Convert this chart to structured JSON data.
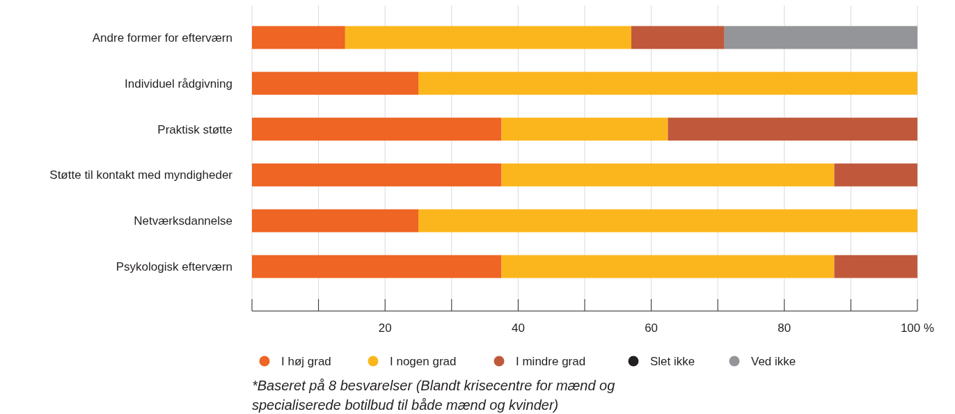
{
  "chart_data": {
    "type": "bar",
    "orientation": "horizontal",
    "stacked": true,
    "categories": [
      "Andre former for efterværn",
      "Individuel rådgivning",
      "Praktisk støtte",
      "Støtte til kontakt med myndigheder",
      "Netværksdannelse",
      "Psykologisk efterværn"
    ],
    "series": [
      {
        "name": "I høj grad",
        "color": "#ee6524",
        "values": [
          14,
          25,
          37.5,
          37.5,
          25,
          37.5
        ]
      },
      {
        "name": "I nogen grad",
        "color": "#fbb61d",
        "values": [
          43,
          75,
          25,
          50,
          75,
          50
        ]
      },
      {
        "name": "I mindre grad",
        "color": "#c0593b",
        "values": [
          14,
          0,
          37.5,
          12.5,
          0,
          12.5
        ]
      },
      {
        "name": "Slet ikke",
        "color": "#231f20",
        "values": [
          0,
          0,
          0,
          0,
          0,
          0
        ]
      },
      {
        "name": "Ved ikke",
        "color": "#939598",
        "values": [
          29,
          0,
          0,
          0,
          0,
          0
        ]
      }
    ],
    "xlim": [
      0,
      100
    ],
    "xticks": [
      {
        "value": 0,
        "label": null
      },
      {
        "value": 10,
        "label": null
      },
      20,
      {
        "value": 30,
        "label": null
      },
      40,
      {
        "value": 50,
        "label": null
      },
      60,
      {
        "value": 70,
        "label": null
      },
      80,
      {
        "value": 90,
        "label": null
      },
      {
        "value": 100,
        "label": "100 %"
      }
    ],
    "grid": "x",
    "legend": "bottom",
    "marker": "circle",
    "annotations": [
      "*Baseret på 8 besvarelser (Blandt krisecentre for mænd og specialiserede botilbud til både mænd og kvinder)"
    ]
  }
}
